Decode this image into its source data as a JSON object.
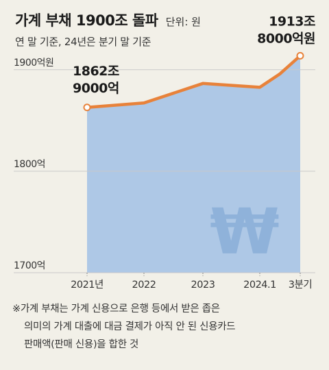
{
  "header": {
    "title": "가계 부채 1900조 돌파",
    "unit": "단위: 원",
    "subtitle": "연 말 기준, 24년은 분기 말 기준"
  },
  "colors": {
    "line": "#e8823a",
    "area": "#aec8e6",
    "marker_fill": "#ffffff",
    "grid": "#c9c9c9",
    "won_symbol": "#8fb2da",
    "background": "#f2f0e8"
  },
  "chart_data": {
    "type": "area",
    "title": "가계 부채 1900조 돌파",
    "subtitle": "연 말 기준, 24년은 분기 말 기준",
    "unit": "단위: 원",
    "categories": [
      "2021년",
      "2022",
      "2023",
      "2024.1",
      "3분기"
    ],
    "x": [
      0,
      1,
      2,
      3,
      4
    ],
    "values": [
      1862.9,
      1867.3,
      1886.5,
      1882.7,
      1913.8
    ],
    "series": [
      {
        "x": [
          0,
          1,
          2,
          3,
          3.5,
          4
        ],
        "values": [
          1862.9,
          1867.3,
          1886.5,
          1882.7,
          1896,
          1913.8
        ]
      }
    ],
    "ylim": [
      1700,
      1910
    ],
    "yticks": [
      1700,
      1800,
      1900
    ],
    "ytick_labels": [
      "1700억",
      "1800억",
      "1900억원"
    ],
    "grid": true,
    "annotations": [
      {
        "index": 0,
        "lines": [
          "1862조",
          "9000억"
        ]
      },
      {
        "index": 4,
        "lines": [
          "1913조",
          "8000억원"
        ]
      }
    ]
  },
  "footnote": {
    "lines": [
      "※가계 부채는 가계 신용으로 은행 등에서 받은 좁은",
      "의미의 가계 대출에 대금 결제가 아직 안 된 신용카드",
      "판매액(판매 신용)을 합한 것"
    ]
  }
}
